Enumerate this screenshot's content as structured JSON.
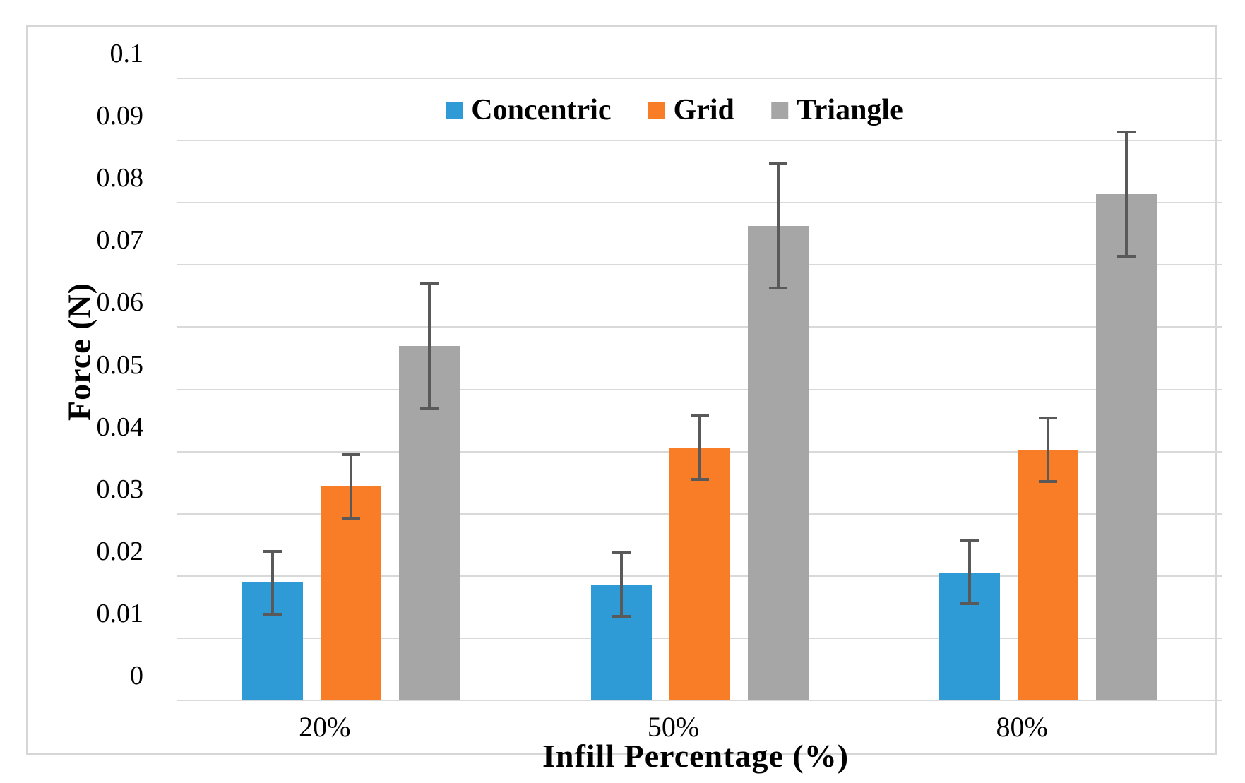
{
  "figure": {
    "background": "#FFFFFF",
    "frame_border_color": "#D6D6D6"
  },
  "chart_data": {
    "type": "bar",
    "title": "",
    "categories": [
      "20%",
      "50%",
      "80%"
    ],
    "series": [
      {
        "name": "Concentric",
        "color": "#2E9BD6",
        "values": [
          0.0189,
          0.0186,
          0.0206
        ],
        "error": [
          0.0051,
          0.0051,
          0.005
        ]
      },
      {
        "name": "Grid",
        "color": "#F97D27",
        "values": [
          0.0344,
          0.0406,
          0.0403
        ],
        "error": [
          0.0051,
          0.0051,
          0.0051
        ]
      },
      {
        "name": "Triangle",
        "color": "#A6A6A6",
        "values": [
          0.057,
          0.0763,
          0.0814
        ],
        "error": [
          0.0101,
          0.01,
          0.01
        ]
      }
    ],
    "xlabel": "Infill Percentage (%)",
    "ylabel": "Force (N)",
    "ylim": [
      0,
      0.1
    ],
    "ytick_step": 0.01,
    "ytick_labels": [
      "0",
      "0.01",
      "0.02",
      "0.03",
      "0.04",
      "0.05",
      "0.06",
      "0.07",
      "0.08",
      "0.09",
      "0.1"
    ],
    "grid": true,
    "gridline_color": "#D9D9D9",
    "error_bar_color": "#595959",
    "legend_position": "top-center"
  }
}
